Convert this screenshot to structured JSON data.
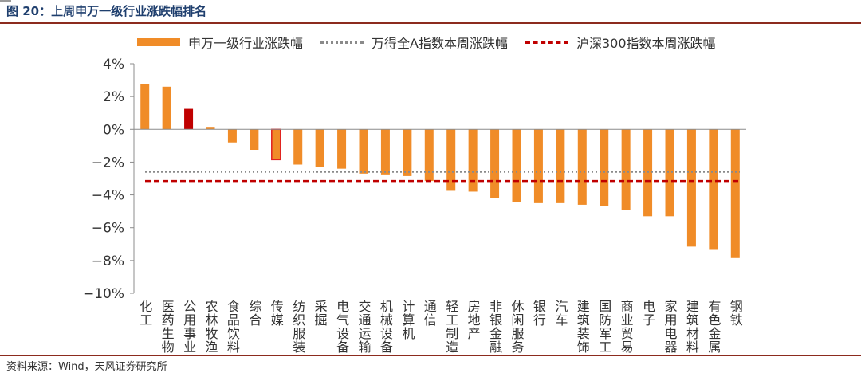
{
  "figure": {
    "title": "图 20：上周申万一级行业涨跌幅排名",
    "source": "资料来源：Wind，天风证券研究所"
  },
  "legend": {
    "bar_label": "申万一级行业涨跌幅",
    "wind_a_label": "万得全A指数本周涨跌幅",
    "hs300_label": "沪深300指数本周涨跌幅"
  },
  "colors": {
    "bar": "#f08c28",
    "highlight_fill": "#c00000",
    "highlight_outline": "#e02020",
    "wind_a_line": "#8a8a8a",
    "hs300_line": "#c00000",
    "axis": "#8c8c8c"
  },
  "chart_data": {
    "type": "bar",
    "title": "上周申万一级行业涨跌幅排名",
    "categories": [
      "化工",
      "医药生物",
      "公用事业",
      "农林牧渔",
      "食品饮料",
      "综合",
      "传媒",
      "纺织服装",
      "采掘",
      "电气设备",
      "交通运输",
      "机械设备",
      "计算机",
      "通信",
      "轻工制造",
      "房地产",
      "非银金融",
      "休闲服务",
      "银行",
      "汽车",
      "建筑装饰",
      "国防军工",
      "商业贸易",
      "电子",
      "家用电器",
      "建筑材料",
      "有色金属",
      "钢铁"
    ],
    "series": [
      {
        "name": "申万一级行业涨跌幅",
        "values": [
          2.75,
          2.6,
          1.25,
          0.15,
          -0.8,
          -1.25,
          -1.85,
          -2.15,
          -2.3,
          -2.4,
          -2.7,
          -2.75,
          -2.85,
          -3.15,
          -3.75,
          -3.8,
          -4.2,
          -4.45,
          -4.5,
          -4.5,
          -4.6,
          -4.7,
          -4.9,
          -5.3,
          -5.3,
          -7.15,
          -7.35,
          -7.85
        ],
        "styles": [
          "normal",
          "normal",
          "highlight-filled",
          "normal",
          "normal",
          "normal",
          "highlight-outline",
          "normal",
          "normal",
          "normal",
          "normal",
          "normal",
          "normal",
          "normal",
          "normal",
          "normal",
          "normal",
          "normal",
          "normal",
          "normal",
          "normal",
          "normal",
          "normal",
          "normal",
          "normal",
          "normal",
          "normal",
          "normal"
        ]
      },
      {
        "name": "万得全A指数本周涨跌幅",
        "type": "line",
        "value": -2.6,
        "line_style": "dotted"
      },
      {
        "name": "沪深300指数本周涨跌幅",
        "type": "line",
        "value": -3.15,
        "line_style": "dashed"
      }
    ],
    "y_ticks": [
      4,
      2,
      0,
      -2,
      -4,
      -6,
      -8,
      -10
    ],
    "y_tick_labels": [
      "4%",
      "2%",
      "0%",
      "−2%",
      "−4%",
      "−6%",
      "−8%",
      "−10%"
    ],
    "ylim": [
      -10,
      4
    ],
    "xlabel": "",
    "ylabel": "",
    "grid": false,
    "legend_position": "top"
  }
}
